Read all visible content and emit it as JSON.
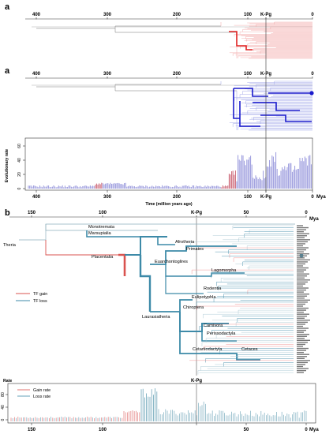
{
  "panel_a": {
    "letter": "a",
    "top_axis_ticks": [
      "400",
      "300",
      "200",
      "100",
      "K-Pg",
      "0"
    ],
    "mid_axis_ticks": [
      "400",
      "300",
      "200",
      "100",
      "K-Pg",
      "0"
    ],
    "rate_plot": {
      "ylabel": "Evolutionary rate",
      "yticks": [
        "0",
        "20",
        "40",
        "60"
      ],
      "xticks": [
        "400",
        "300",
        "200",
        "100",
        "K-Pg",
        "0"
      ],
      "xunit": "Mya",
      "xlabel": "Time (million years ago)"
    },
    "colors": {
      "gain": "#e05050",
      "loss": "#2020cc",
      "rate_loss": "#9999dd",
      "rate_gain": "#cc6677"
    }
  },
  "panel_b": {
    "letter": "b",
    "axis_ticks": [
      "150",
      "100",
      "K-Pg",
      "50",
      "0"
    ],
    "axis_unit": "Mya",
    "clades": {
      "theria": "Theria",
      "monotremata": "Monotremata",
      "marsupialia": "Marsupialia",
      "placentalia": "Placentalia",
      "afrotheria": "Afrotheria",
      "primates": "Primates",
      "euarchontoglires": "Euarchontoglires",
      "lagomorpha": "Lagomorpha",
      "rodentia": "Rodentia",
      "eulipotyphla": "Eulipotyphla",
      "chiroptera": "Chiroptera",
      "laurasiatheria": "Laurasiatheria",
      "carnivora": "Carnivora",
      "perissodactyla": "Perissodactyla",
      "cetartiodactyla": "Cetartiodactyla",
      "cetaces": "Cetaces"
    },
    "legend": {
      "gain": "TF gain",
      "loss": "TF loss"
    },
    "colors": {
      "gain": "#d9534f",
      "loss": "#3d8aa8"
    },
    "rate_plot": {
      "ylabel": "Rate",
      "yticks": [
        "80",
        "40",
        "0"
      ],
      "xticks": [
        "150",
        "100",
        "K-Pg",
        "50",
        "0"
      ],
      "xunit": "Mya",
      "legend": {
        "gain": "Gain rate",
        "loss": "Loss rate"
      }
    }
  }
}
